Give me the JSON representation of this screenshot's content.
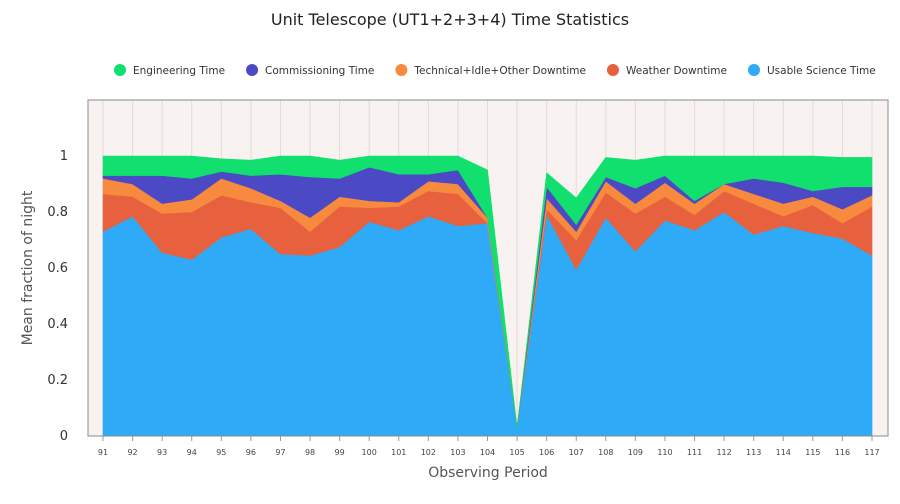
{
  "chart_data": {
    "type": "area",
    "stacked": true,
    "title": "Unit Telescope (UT1+2+3+4) Time Statistics",
    "xlabel": "Observing Period",
    "ylabel": "Mean fraction of night",
    "ylim": [
      0,
      1.0
    ],
    "yticks": [
      0,
      0.2,
      0.4,
      0.6,
      0.8,
      1
    ],
    "ytick_labels": [
      "0",
      "0.2",
      "0.4",
      "0.6",
      "0.8",
      "1"
    ],
    "legend_position": "top-center",
    "grid": "vertical",
    "plot_background": "#f8f3f0",
    "categories": [
      "91",
      "92",
      "93",
      "94",
      "95",
      "96",
      "97",
      "98",
      "99",
      "100",
      "101",
      "102",
      "103",
      "104",
      "105",
      "106",
      "107",
      "108",
      "109",
      "110",
      "111",
      "112",
      "113",
      "114",
      "115",
      "116",
      "117"
    ],
    "series": [
      {
        "name": "Usable Science Time",
        "color": "#2eaaf7",
        "values": [
          0.73,
          0.785,
          0.655,
          0.63,
          0.71,
          0.74,
          0.65,
          0.645,
          0.675,
          0.765,
          0.735,
          0.785,
          0.75,
          0.76,
          0.03,
          0.79,
          0.595,
          0.78,
          0.66,
          0.77,
          0.735,
          0.8,
          0.72,
          0.75,
          0.725,
          0.705,
          0.645
        ]
      },
      {
        "name": "Weather Downtime",
        "color": "#e8613e",
        "values": [
          0.135,
          0.07,
          0.14,
          0.17,
          0.15,
          0.095,
          0.165,
          0.085,
          0.145,
          0.05,
          0.085,
          0.09,
          0.115,
          0.0,
          0.0,
          0.02,
          0.105,
          0.09,
          0.135,
          0.085,
          0.055,
          0.075,
          0.11,
          0.035,
          0.1,
          0.055,
          0.175
        ]
      },
      {
        "name": "Technical+Idle+Other Downtime",
        "color": "#f78a3e",
        "values": [
          0.055,
          0.045,
          0.035,
          0.045,
          0.06,
          0.05,
          0.025,
          0.05,
          0.035,
          0.025,
          0.015,
          0.035,
          0.035,
          0.02,
          0.0,
          0.04,
          0.03,
          0.04,
          0.035,
          0.05,
          0.04,
          0.025,
          0.035,
          0.045,
          0.03,
          0.05,
          0.04
        ]
      },
      {
        "name": "Commissioning Time",
        "color": "#4b49c3",
        "values": [
          0.01,
          0.03,
          0.1,
          0.075,
          0.025,
          0.045,
          0.095,
          0.145,
          0.065,
          0.12,
          0.1,
          0.025,
          0.05,
          0.0,
          0.0,
          0.04,
          0.025,
          0.015,
          0.055,
          0.025,
          0.01,
          0.0,
          0.055,
          0.075,
          0.02,
          0.08,
          0.03
        ]
      },
      {
        "name": "Engineering Time",
        "color": "#11e06f",
        "values": [
          0.07,
          0.07,
          0.07,
          0.08,
          0.045,
          0.055,
          0.065,
          0.075,
          0.065,
          0.04,
          0.065,
          0.065,
          0.05,
          0.17,
          0.0,
          0.05,
          0.095,
          0.07,
          0.1,
          0.07,
          0.16,
          0.1,
          0.08,
          0.095,
          0.125,
          0.105,
          0.105
        ]
      }
    ],
    "legend_order": [
      "Engineering Time",
      "Commissioning Time",
      "Technical+Idle+Other Downtime",
      "Weather Downtime",
      "Usable Science Time"
    ]
  }
}
